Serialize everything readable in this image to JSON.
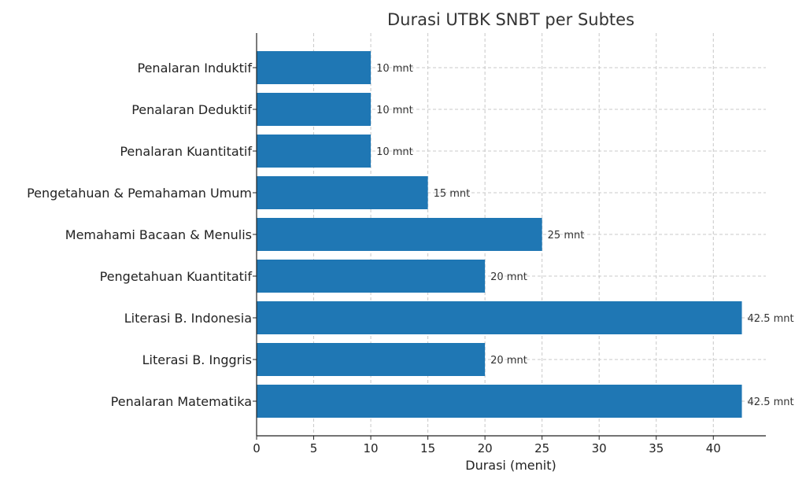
{
  "chart_data": {
    "type": "bar",
    "orientation": "horizontal",
    "title": "Durasi UTBK SNBT per Subtes",
    "xlabel": "Durasi (menit)",
    "ylabel": "",
    "xlim": [
      0,
      44.6
    ],
    "x_ticks": [
      "0",
      "5",
      "10",
      "15",
      "20",
      "25",
      "30",
      "35",
      "40"
    ],
    "grid": true,
    "bar_color": "#1f77b4",
    "categories": [
      "Penalaran Induktif",
      "Penalaran Deduktif",
      "Penalaran Kuantitatif",
      "Pengetahuan & Pemahaman Umum",
      "Memahami Bacaan & Menulis",
      "Pengetahuan Kuantitatif",
      "Literasi B. Indonesia",
      "Literasi B. Inggris",
      "Penalaran Matematika"
    ],
    "values": [
      10,
      10,
      10,
      15,
      25,
      20,
      42.5,
      20,
      42.5
    ],
    "data_labels": [
      "10 mnt",
      "10 mnt",
      "10 mnt",
      "15 mnt",
      "25 mnt",
      "20 mnt",
      "42.5 mnt",
      "20 mnt",
      "42.5 mnt"
    ]
  }
}
